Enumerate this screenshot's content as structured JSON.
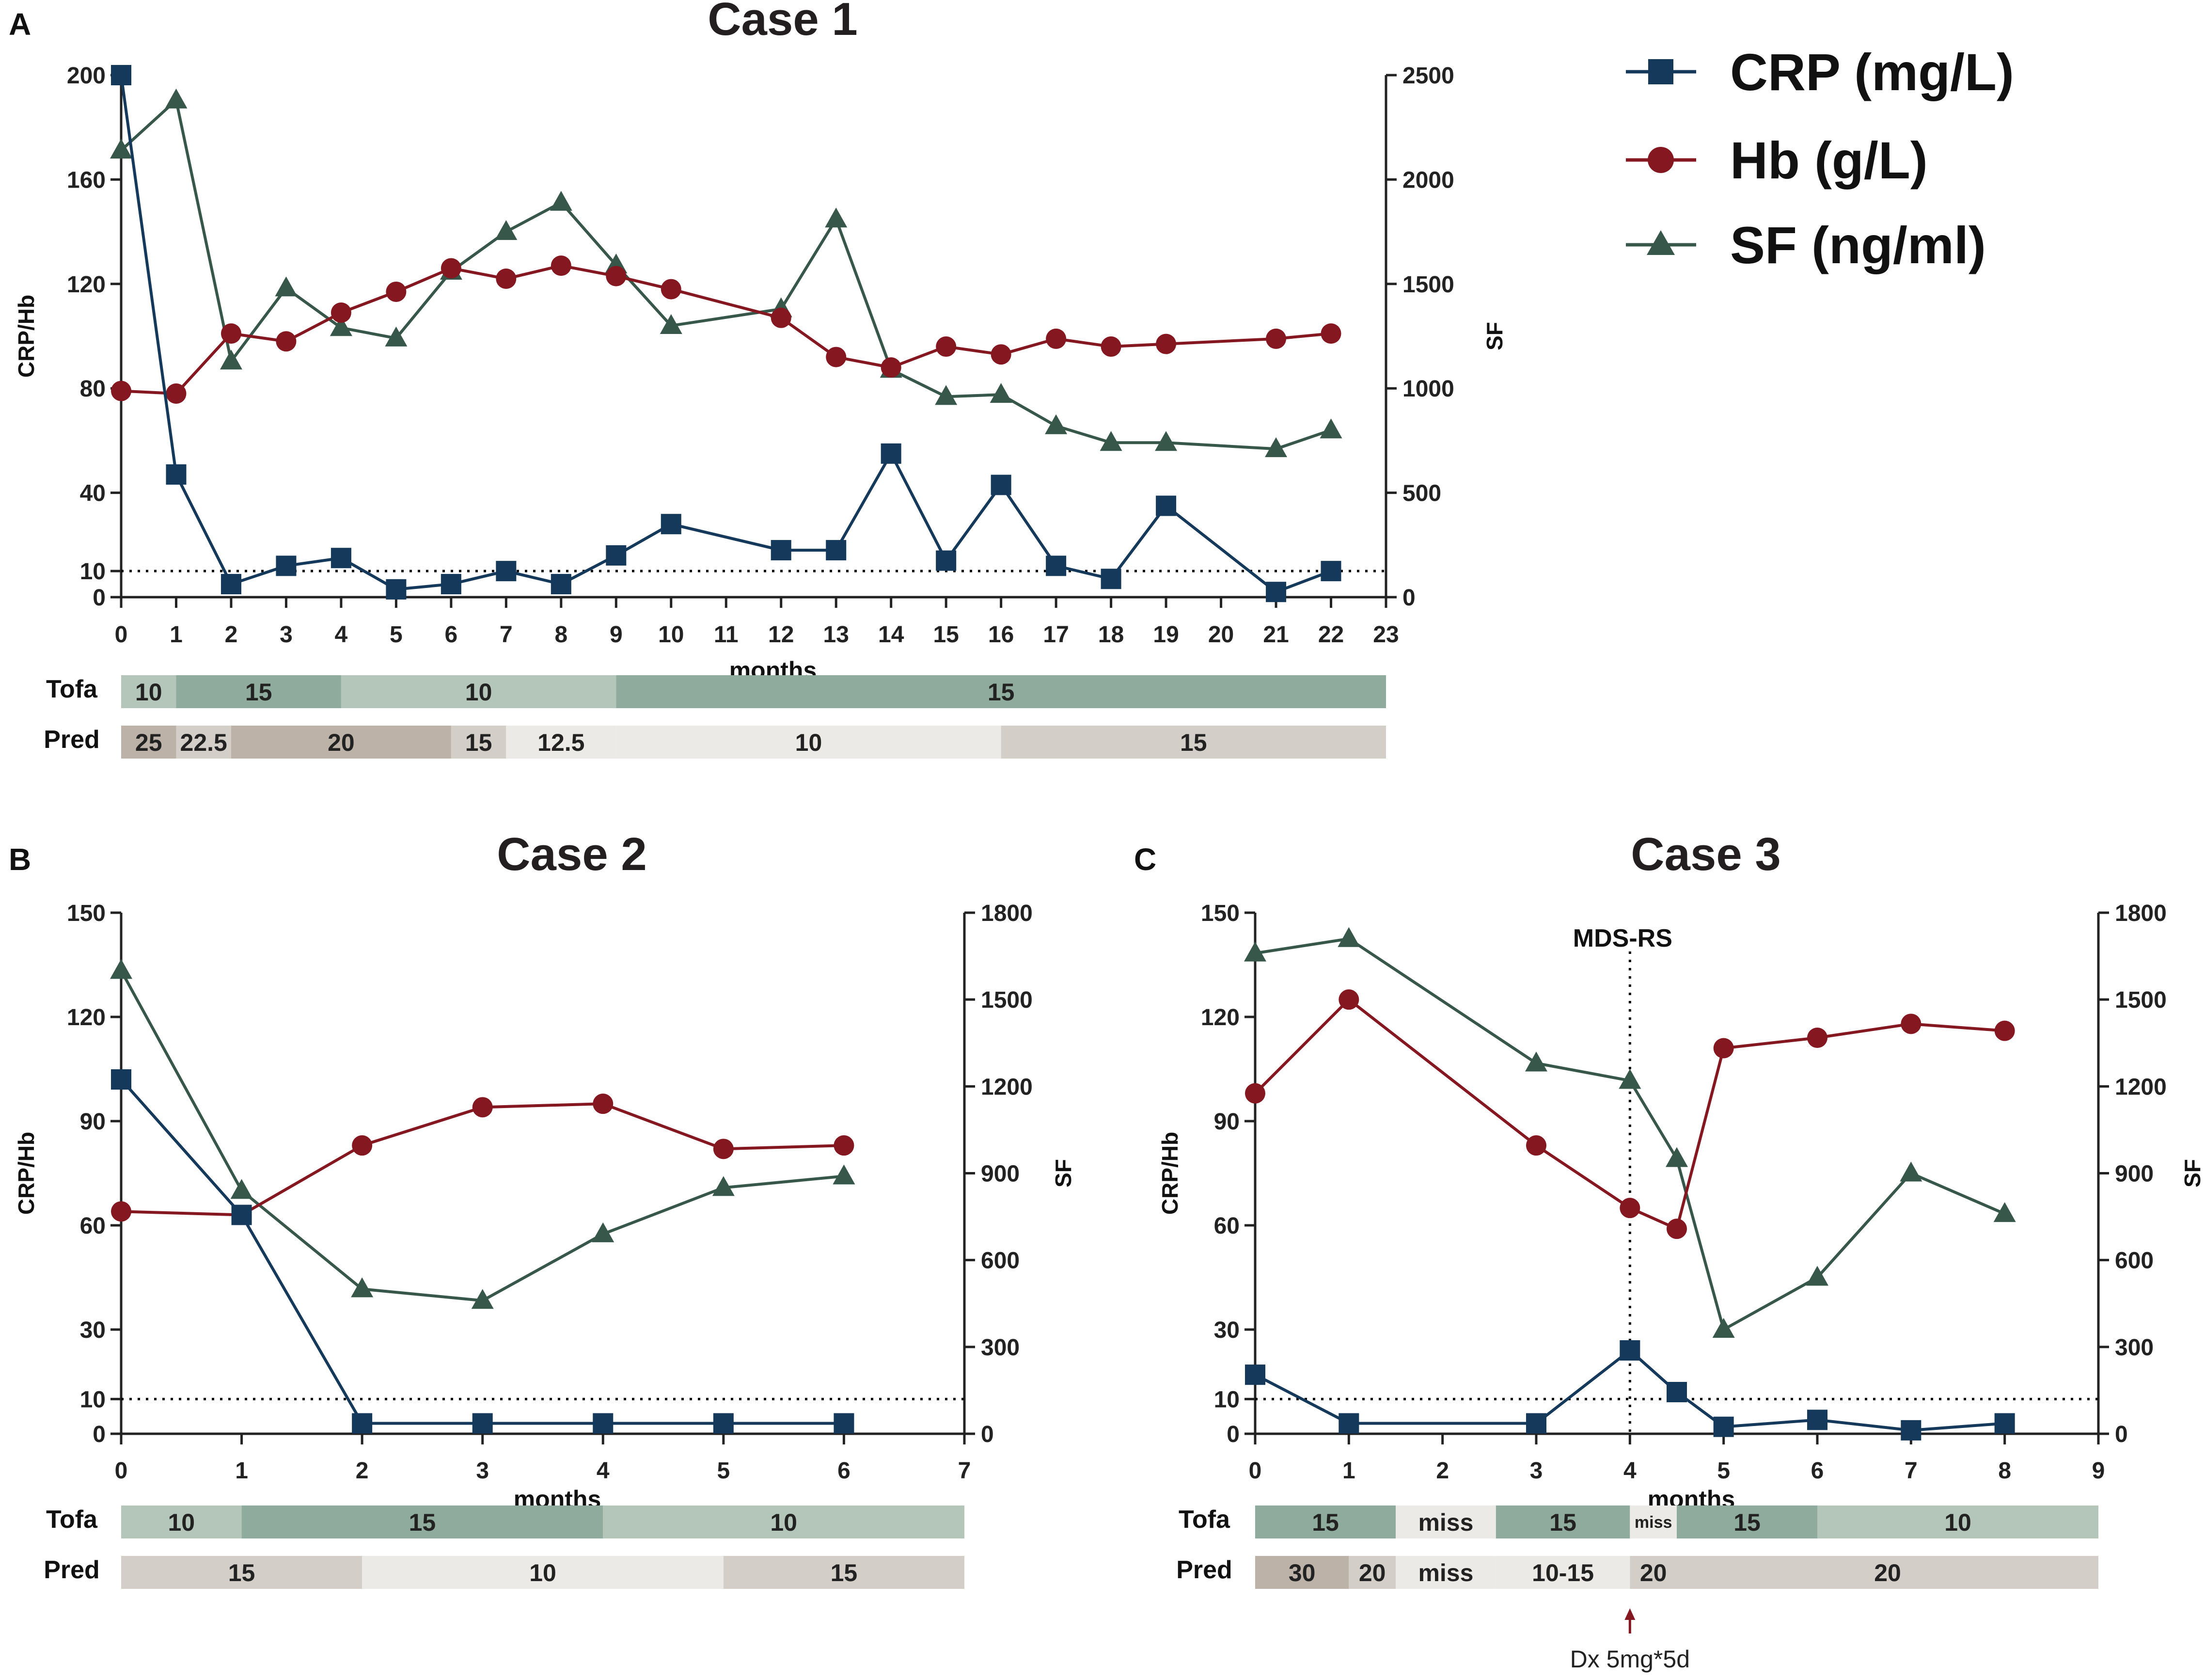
{
  "colors": {
    "crp": "#15395b",
    "hb": "#84171f",
    "sf": "#37574b",
    "tofa_light": "#b3c6b9",
    "tofa_dark": "#8fab9d",
    "pred_dark": "#bdb2a7",
    "pred_mid": "#d3cec7",
    "pred_light": "#eceae6",
    "threshold": "#000000",
    "marker_line": "#000000",
    "arrow": "#84171f"
  },
  "legend": [
    {
      "key": "crp",
      "label": "CRP (mg/L)",
      "marker": "square"
    },
    {
      "key": "hb",
      "label": "Hb (g/L)",
      "marker": "circle"
    },
    {
      "key": "sf",
      "label": "SF (ng/ml)",
      "marker": "triangle"
    }
  ],
  "chart_data": [
    {
      "type": "line",
      "panel": "A",
      "title": "Case 1",
      "xlabel": "months",
      "ylabel": "CRP/Hb",
      "y2label": "SF",
      "xlim": [
        0,
        23
      ],
      "xticks": [
        0,
        1,
        2,
        3,
        4,
        5,
        6,
        7,
        8,
        9,
        10,
        11,
        12,
        13,
        14,
        15,
        16,
        17,
        18,
        19,
        20,
        21,
        22,
        23
      ],
      "ylim": [
        0,
        200
      ],
      "yticks": [
        0,
        10,
        40,
        80,
        120,
        160,
        200
      ],
      "y2lim": [
        0,
        2500
      ],
      "y2ticks": [
        0,
        500,
        1000,
        1500,
        2000,
        2500
      ],
      "threshold": 10,
      "series": [
        {
          "name": "CRP (mg/L)",
          "key": "crp",
          "axis": "left",
          "x": [
            0,
            1,
            2,
            3,
            4,
            5,
            6,
            7,
            8,
            9,
            10,
            12,
            13,
            14,
            15,
            16,
            17,
            18,
            19,
            21,
            22
          ],
          "values": [
            200,
            47,
            5,
            12,
            15,
            3,
            5,
            10,
            5,
            16,
            28,
            18,
            18,
            55,
            14,
            43,
            12,
            7,
            35,
            2,
            10
          ]
        },
        {
          "name": "Hb (g/L)",
          "key": "hb",
          "axis": "left",
          "x": [
            0,
            1,
            2,
            3,
            4,
            5,
            6,
            7,
            8,
            9,
            10,
            12,
            13,
            14,
            15,
            16,
            17,
            18,
            19,
            21,
            22
          ],
          "values": [
            79,
            78,
            101,
            98,
            109,
            117,
            126,
            122,
            127,
            123,
            118,
            107,
            92,
            88,
            96,
            93,
            99,
            96,
            97,
            99,
            101
          ]
        },
        {
          "name": "SF (ng/ml)",
          "key": "sf",
          "axis": "right",
          "x": [
            0,
            1,
            2,
            3,
            4,
            5,
            6,
            7,
            8,
            9,
            10,
            12,
            13,
            14,
            15,
            16,
            17,
            18,
            19,
            21,
            22
          ],
          "values": [
            2140,
            2380,
            1130,
            1480,
            1290,
            1240,
            1560,
            1750,
            1890,
            1590,
            1300,
            1380,
            1810,
            1090,
            960,
            970,
            820,
            740,
            740,
            710,
            800
          ]
        }
      ],
      "dose_rows": [
        {
          "label": "Tofa",
          "segments": [
            {
              "from": 0,
              "to": 1,
              "text": "10",
              "tone": "tofa_light"
            },
            {
              "from": 1,
              "to": 4,
              "text": "15",
              "tone": "tofa_dark"
            },
            {
              "from": 4,
              "to": 9,
              "text": "10",
              "tone": "tofa_light"
            },
            {
              "from": 9,
              "to": 23,
              "text": "15",
              "tone": "tofa_dark"
            }
          ]
        },
        {
          "label": "Pred",
          "segments": [
            {
              "from": 0,
              "to": 1,
              "text": "25",
              "tone": "pred_dark"
            },
            {
              "from": 1,
              "to": 2,
              "text": "22.5",
              "tone": "pred_mid"
            },
            {
              "from": 2,
              "to": 6,
              "text": "20",
              "tone": "pred_dark"
            },
            {
              "from": 6,
              "to": 7,
              "text": "15",
              "tone": "pred_mid"
            },
            {
              "from": 7,
              "to": 9,
              "text": "12.5",
              "tone": "pred_light"
            },
            {
              "from": 9,
              "to": 16,
              "text": "10",
              "tone": "pred_light"
            },
            {
              "from": 16,
              "to": 23,
              "text": "15",
              "tone": "pred_mid"
            }
          ]
        }
      ]
    },
    {
      "type": "line",
      "panel": "B",
      "title": "Case 2",
      "xlabel": "months",
      "ylabel": "CRP/Hb",
      "y2label": "SF",
      "xlim": [
        0,
        7
      ],
      "xticks": [
        0,
        1,
        2,
        3,
        4,
        5,
        6,
        7
      ],
      "ylim": [
        0,
        150
      ],
      "yticks": [
        0,
        10,
        30,
        60,
        90,
        120,
        150
      ],
      "y2lim": [
        0,
        1800
      ],
      "y2ticks": [
        0,
        300,
        600,
        900,
        1200,
        1500,
        1800
      ],
      "threshold": 10,
      "series": [
        {
          "name": "CRP (mg/L)",
          "key": "crp",
          "axis": "left",
          "x": [
            0,
            1,
            2,
            3,
            4,
            5,
            6
          ],
          "values": [
            102,
            63,
            3,
            3,
            3,
            3,
            3
          ]
        },
        {
          "name": "Hb (g/L)",
          "key": "hb",
          "axis": "left",
          "x": [
            0,
            1,
            2,
            3,
            4,
            5,
            6
          ],
          "values": [
            64,
            63,
            83,
            94,
            95,
            82,
            83
          ]
        },
        {
          "name": "SF (ng/ml)",
          "key": "sf",
          "axis": "right",
          "x": [
            0,
            1,
            2,
            3,
            4,
            5,
            6
          ],
          "values": [
            1600,
            840,
            500,
            460,
            690,
            850,
            890
          ]
        }
      ],
      "dose_rows": [
        {
          "label": "Tofa",
          "segments": [
            {
              "from": 0,
              "to": 1,
              "text": "10",
              "tone": "tofa_light"
            },
            {
              "from": 1,
              "to": 4,
              "text": "15",
              "tone": "tofa_dark"
            },
            {
              "from": 4,
              "to": 7,
              "text": "10",
              "tone": "tofa_light"
            }
          ]
        },
        {
          "label": "Pred",
          "segments": [
            {
              "from": 0,
              "to": 2,
              "text": "15",
              "tone": "pred_mid"
            },
            {
              "from": 2,
              "to": 5,
              "text": "10",
              "tone": "pred_light"
            },
            {
              "from": 5,
              "to": 7,
              "text": "15",
              "tone": "pred_mid"
            }
          ]
        }
      ]
    },
    {
      "type": "line",
      "panel": "C",
      "title": "Case 3",
      "xlabel": "months",
      "ylabel": "CRP/Hb",
      "y2label": "SF",
      "xlim": [
        0,
        9
      ],
      "xticks": [
        0,
        1,
        2,
        3,
        4,
        5,
        6,
        7,
        8,
        9
      ],
      "ylim": [
        0,
        150
      ],
      "yticks": [
        0,
        10,
        30,
        60,
        90,
        120,
        150
      ],
      "y2lim": [
        0,
        1800
      ],
      "y2ticks": [
        0,
        300,
        600,
        900,
        1200,
        1500,
        1800
      ],
      "threshold": 10,
      "event": {
        "x": 4,
        "label": "MDS-RS"
      },
      "note": {
        "x": 4,
        "label": "Dx 5mg*5d"
      },
      "series": [
        {
          "name": "CRP (mg/L)",
          "key": "crp",
          "axis": "left",
          "x": [
            0,
            1,
            3,
            4,
            4.5,
            5,
            6,
            7,
            8
          ],
          "values": [
            17,
            3,
            3,
            24,
            12,
            2,
            4,
            1,
            3
          ]
        },
        {
          "name": "Hb (g/L)",
          "key": "hb",
          "axis": "left",
          "x": [
            0,
            1,
            3,
            4,
            4.5,
            5,
            6,
            7,
            8
          ],
          "values": [
            98,
            125,
            83,
            65,
            59,
            111,
            114,
            118,
            116
          ]
        },
        {
          "name": "SF (ng/ml)",
          "key": "sf",
          "axis": "right",
          "x": [
            0,
            1,
            3,
            4,
            4.5,
            5,
            6,
            7,
            8
          ],
          "values": [
            1660,
            1710,
            1280,
            1220,
            950,
            360,
            540,
            900,
            760
          ]
        }
      ],
      "dose_rows": [
        {
          "label": "Tofa",
          "segments": [
            {
              "from": 0,
              "to": 1.5,
              "text": "15",
              "tone": "tofa_dark"
            },
            {
              "from": 1.5,
              "to": 2.57,
              "text": "miss",
              "tone": "pred_light"
            },
            {
              "from": 2.57,
              "to": 4,
              "text": "15",
              "tone": "tofa_dark"
            },
            {
              "from": 4,
              "to": 4.5,
              "text": "miss",
              "tone": "pred_light",
              "small": true
            },
            {
              "from": 4.5,
              "to": 6,
              "text": "15",
              "tone": "tofa_dark"
            },
            {
              "from": 6,
              "to": 9,
              "text": "10",
              "tone": "tofa_light"
            }
          ]
        },
        {
          "label": "Pred",
          "segments": [
            {
              "from": 0,
              "to": 1,
              "text": "30",
              "tone": "pred_dark"
            },
            {
              "from": 1,
              "to": 1.5,
              "text": "20",
              "tone": "pred_mid"
            },
            {
              "from": 1.5,
              "to": 2.57,
              "text": "miss",
              "tone": "pred_light"
            },
            {
              "from": 2.57,
              "to": 4,
              "text": "10-15",
              "tone": "pred_light"
            },
            {
              "from": 4,
              "to": 4.5,
              "text": "20",
              "tone": "pred_mid"
            },
            {
              "from": 4.5,
              "to": 9,
              "text": "20",
              "tone": "pred_mid"
            }
          ]
        }
      ]
    }
  ]
}
